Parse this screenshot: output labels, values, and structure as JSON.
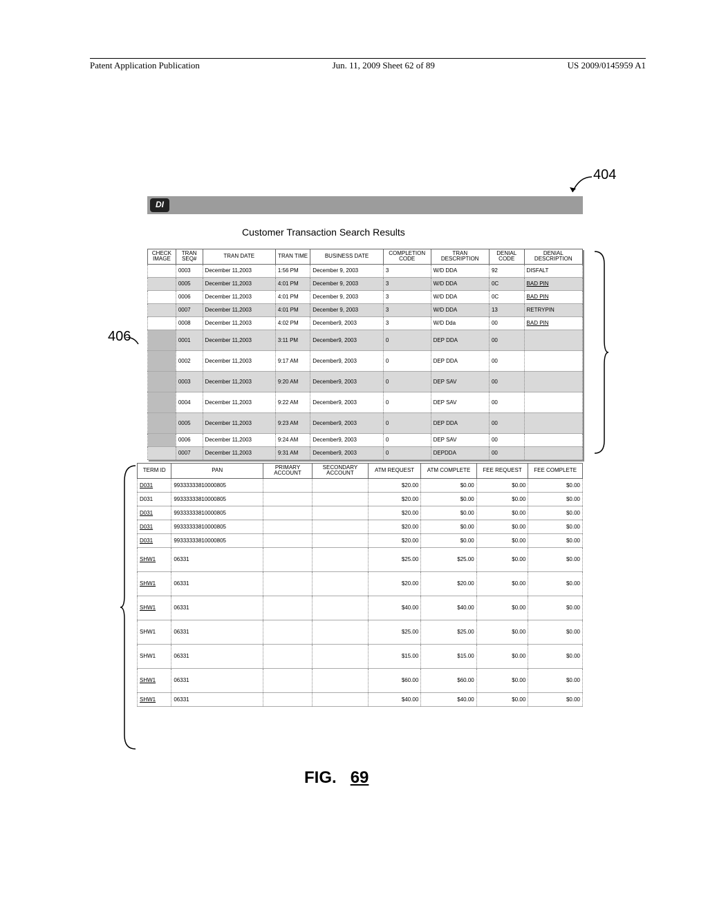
{
  "header": {
    "left": "Patent Application Publication",
    "center": "Jun. 11, 2009  Sheet 62 of 89",
    "right": "US 2009/0145959 A1"
  },
  "callouts": {
    "r404": "404",
    "r406": "406"
  },
  "banner": {
    "logo": "DI"
  },
  "page_title": "Customer Transaction Search Results",
  "table1": {
    "columns": [
      "CHECK IMAGE",
      "TRAN SEQ#",
      "TRAN DATE",
      "TRAN TIME",
      "BUSINESS DATE",
      "COMPLETION CODE",
      "TRAN DESCRIPTION",
      "DENIAL CODE",
      "DENIAL DESCRIPTION"
    ],
    "rows": [
      {
        "img": false,
        "big": false,
        "alt": false,
        "seq": "0003",
        "date": "December 11,2003",
        "time": "1:56 PM",
        "bdate": "December 9, 2003",
        "code": "3",
        "desc": "W/D DDA",
        "dcode": "92",
        "ddesc": "DISFALT",
        "link": false
      },
      {
        "img": false,
        "big": false,
        "alt": true,
        "seq": "0005",
        "date": "December 11,2003",
        "time": "4:01 PM",
        "bdate": "December 9, 2003",
        "code": "3",
        "desc": "W/D DDA",
        "dcode": "0C",
        "ddesc": "BAD PIN",
        "link": true
      },
      {
        "img": false,
        "big": false,
        "alt": false,
        "seq": "0006",
        "date": "December 11,2003",
        "time": "4:01 PM",
        "bdate": "December 9, 2003",
        "code": "3",
        "desc": "W/D DDA",
        "dcode": "0C",
        "ddesc": "BAD PIN",
        "link": true
      },
      {
        "img": false,
        "big": false,
        "alt": true,
        "seq": "0007",
        "date": "December 11,2003",
        "time": "4:01 PM",
        "bdate": "December 9, 2003",
        "code": "3",
        "desc": "W/D DDA",
        "dcode": "13",
        "ddesc": "RETRYPIN",
        "link": false
      },
      {
        "img": false,
        "big": false,
        "alt": false,
        "seq": "0008",
        "date": "December 11,2003",
        "time": "4:02 PM",
        "bdate": "December9, 2003",
        "code": "3",
        "desc": "W/D Dda",
        "dcode": "00",
        "ddesc": "BAD PIN",
        "link": true
      },
      {
        "img": true,
        "big": true,
        "alt": true,
        "seq": "0001",
        "date": "December 11,2003",
        "time": "3:11 PM",
        "bdate": "December9, 2003",
        "code": "0",
        "desc": "DEP DDA",
        "dcode": "00",
        "ddesc": "",
        "link": false
      },
      {
        "img": true,
        "big": true,
        "alt": false,
        "seq": "0002",
        "date": "December 11,2003",
        "time": "9:17 AM",
        "bdate": "December9, 2003",
        "code": "0",
        "desc": "DEP DDA",
        "dcode": "00",
        "ddesc": "",
        "link": false
      },
      {
        "img": true,
        "big": true,
        "alt": true,
        "seq": "0003",
        "date": "December 11,2003",
        "time": "9:20 AM",
        "bdate": "December9, 2003",
        "code": "0",
        "desc": "DEP SAV",
        "dcode": "00",
        "ddesc": "",
        "link": false
      },
      {
        "img": true,
        "big": true,
        "alt": false,
        "seq": "0004",
        "date": "December 11,2003",
        "time": "9:22 AM",
        "bdate": "December9, 2003",
        "code": "0",
        "desc": "DEP SAV",
        "dcode": "00",
        "ddesc": "",
        "link": false
      },
      {
        "img": true,
        "big": true,
        "alt": true,
        "seq": "0005",
        "date": "December 11,2003",
        "time": "9:23 AM",
        "bdate": "December9, 2003",
        "code": "0",
        "desc": "DEP DDA",
        "dcode": "00",
        "ddesc": "",
        "link": false
      },
      {
        "img": true,
        "big": false,
        "alt": false,
        "seq": "0006",
        "date": "December 11,2003",
        "time": "9:24 AM",
        "bdate": "December9, 2003",
        "code": "0",
        "desc": "DEP SAV",
        "dcode": "00",
        "ddesc": "",
        "link": false
      },
      {
        "img": false,
        "big": false,
        "alt": true,
        "seq": "0007",
        "date": "December 11,2003",
        "time": "9:31 AM",
        "bdate": "December9, 2003",
        "code": "0",
        "desc": "DEPDDA",
        "dcode": "00",
        "ddesc": "",
        "link": false
      }
    ]
  },
  "table2": {
    "columns": [
      "TERM ID",
      "PAN",
      "PRIMARY ACCOUNT",
      "SECONDARY ACCOUNT",
      "ATM REQUEST",
      "ATM COMPLETE",
      "FEE REQUEST",
      "FEE COMPLETE"
    ],
    "rows": [
      {
        "big": false,
        "term": "D031",
        "link": true,
        "pan": "99333333810000805",
        "p": "",
        "s": "",
        "ar": "$20.00",
        "ac": "$0.00",
        "fr": "$0.00",
        "fc": "$0.00"
      },
      {
        "big": false,
        "term": "D031",
        "link": false,
        "pan": "99333333810000805",
        "p": "",
        "s": "",
        "ar": "$20.00",
        "ac": "$0.00",
        "fr": "$0.00",
        "fc": "$0.00"
      },
      {
        "big": false,
        "term": "D031",
        "link": true,
        "pan": "99333333810000805",
        "p": "",
        "s": "",
        "ar": "$20.00",
        "ac": "$0.00",
        "fr": "$0.00",
        "fc": "$0.00"
      },
      {
        "big": false,
        "term": "D031",
        "link": true,
        "pan": "99333333810000805",
        "p": "",
        "s": "",
        "ar": "$20.00",
        "ac": "$0.00",
        "fr": "$0.00",
        "fc": "$0.00"
      },
      {
        "big": false,
        "term": "D031",
        "link": true,
        "pan": "99333333810000805",
        "p": "",
        "s": "",
        "ar": "$20.00",
        "ac": "$0.00",
        "fr": "$0.00",
        "fc": "$0.00"
      },
      {
        "big": true,
        "term": "SHW1",
        "link": true,
        "pan": "06331",
        "p": "",
        "s": "",
        "ar": "$25.00",
        "ac": "$25.00",
        "fr": "$0.00",
        "fc": "$0.00"
      },
      {
        "big": true,
        "term": "SHW1",
        "link": true,
        "pan": "06331",
        "p": "",
        "s": "",
        "ar": "$20.00",
        "ac": "$20.00",
        "fr": "$0.00",
        "fc": "$0.00"
      },
      {
        "big": true,
        "term": "SHW1",
        "link": true,
        "pan": "06331",
        "p": "",
        "s": "",
        "ar": "$40.00",
        "ac": "$40.00",
        "fr": "$0.00",
        "fc": "$0.00"
      },
      {
        "big": true,
        "term": "SHW1",
        "link": false,
        "pan": "06331",
        "p": "",
        "s": "",
        "ar": "$25.00",
        "ac": "$25.00",
        "fr": "$0.00",
        "fc": "$0.00"
      },
      {
        "big": true,
        "term": "SHW1",
        "link": false,
        "pan": "06331",
        "p": "",
        "s": "",
        "ar": "$15.00",
        "ac": "$15.00",
        "fr": "$0.00",
        "fc": "$0.00"
      },
      {
        "big": true,
        "term": "SHW1",
        "link": true,
        "pan": "06331",
        "p": "",
        "s": "",
        "ar": "$60.00",
        "ac": "$60.00",
        "fr": "$0.00",
        "fc": "$0.00"
      },
      {
        "big": false,
        "term": "SHW1",
        "link": true,
        "pan": "06331",
        "p": "",
        "s": "",
        "ar": "$40.00",
        "ac": "$40.00",
        "fr": "$0.00",
        "fc": "$0.00"
      }
    ]
  },
  "figure": {
    "label_prefix": "FIG.",
    "number": "69"
  },
  "colors": {
    "shade": "#bdbdbd",
    "row_alt": "#d9d9d9",
    "banner": "#9c9c9c"
  }
}
